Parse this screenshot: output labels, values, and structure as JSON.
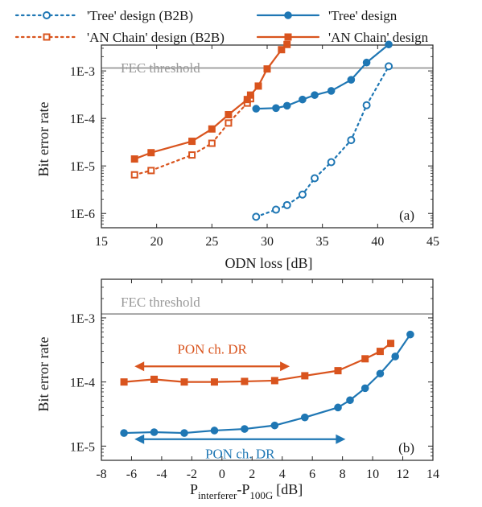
{
  "legend": {
    "items": [
      {
        "label": "'Tree' design (B2B)",
        "color": "#1f77b4",
        "marker": "open-circle",
        "line": "dotted"
      },
      {
        "label": "'Tree' design",
        "color": "#1f77b4",
        "marker": "filled-circle",
        "line": "solid"
      },
      {
        "label": "'AN Chain' design (B2B)",
        "color": "#d9541e",
        "marker": "open-square",
        "line": "dotted"
      },
      {
        "label": "'AN Chain' design",
        "color": "#d9541e",
        "marker": "filled-square",
        "line": "solid"
      }
    ]
  },
  "chart_data": [
    {
      "type": "line",
      "panel_label": "(a)",
      "xlabel": "ODN loss [dB]",
      "ylabel": "Bit error rate",
      "yscale": "log",
      "xlim": [
        15,
        45
      ],
      "ylim": [
        5e-07,
        0.0035
      ],
      "xticks": [
        15,
        20,
        25,
        30,
        35,
        40,
        45
      ],
      "yticks": [
        {
          "value": 1e-06,
          "label": "1E-6"
        },
        {
          "value": 1e-05,
          "label": "1E-5"
        },
        {
          "value": 0.0001,
          "label": "1E-4"
        },
        {
          "value": 0.001,
          "label": "1E-3"
        }
      ],
      "threshold": {
        "label": "FEC threshold",
        "value": 0.00115,
        "color": "#999999"
      },
      "series": [
        {
          "name": "'Tree' design (B2B)",
          "color": "#1f77b4",
          "marker": "open-circle",
          "line": "dotted",
          "x": [
            29.0,
            30.8,
            31.8,
            33.2,
            34.3,
            35.8,
            37.6,
            39.0,
            41.0
          ],
          "y": [
            8.5e-07,
            1.2e-06,
            1.5e-06,
            2.5e-06,
            5.5e-06,
            1.2e-05,
            3.5e-05,
            0.00019,
            0.00125
          ]
        },
        {
          "name": "'Tree' design",
          "color": "#1f77b4",
          "marker": "filled-circle",
          "line": "solid",
          "x": [
            29.0,
            30.8,
            31.8,
            33.2,
            34.3,
            35.8,
            37.6,
            39.0,
            41.0
          ],
          "y": [
            0.00016,
            0.000165,
            0.000185,
            0.00025,
            0.00031,
            0.00038,
            0.00065,
            0.0015,
            0.0036
          ]
        },
        {
          "name": "'AN Chain' design (B2B)",
          "color": "#d9541e",
          "marker": "open-square",
          "line": "dotted",
          "x": [
            18.0,
            19.5,
            23.2,
            25.0,
            26.5,
            28.2,
            28.5
          ],
          "y": [
            6.5e-06,
            8e-06,
            1.7e-05,
            3e-05,
            8e-05,
            0.00021,
            0.00026
          ]
        },
        {
          "name": "'AN Chain' design",
          "color": "#d9541e",
          "marker": "filled-square",
          "line": "solid",
          "x": [
            18.0,
            19.5,
            23.2,
            25.0,
            26.5,
            28.2,
            28.5,
            29.2,
            30.0,
            31.3,
            31.8
          ],
          "y": [
            1.4e-05,
            1.9e-05,
            3.3e-05,
            6e-05,
            0.00012,
            0.00025,
            0.00031,
            0.00048,
            0.0011,
            0.0028,
            0.0036
          ]
        }
      ]
    },
    {
      "type": "line",
      "panel_label": "(b)",
      "xlabel_main": "P",
      "xlabel_sub1": "interferer",
      "xlabel_mid": "-P",
      "xlabel_sub2": "100G",
      "xlabel_unit": "[dB]",
      "ylabel": "Bit error rate",
      "yscale": "log",
      "xlim": [
        -8,
        14
      ],
      "ylim": [
        6e-06,
        0.004
      ],
      "xticks": [
        -8,
        -6,
        -4,
        -2,
        0,
        2,
        4,
        6,
        8,
        10,
        12,
        14
      ],
      "yticks": [
        {
          "value": 1e-05,
          "label": "1E-5"
        },
        {
          "value": 0.0001,
          "label": "1E-4"
        },
        {
          "value": 0.001,
          "label": "1E-3"
        }
      ],
      "threshold": {
        "label": "FEC threshold",
        "value": 0.00115,
        "color": "#999999"
      },
      "annotations": [
        {
          "text": "PON ch. DR",
          "color": "#d9541e",
          "x_from": -5.8,
          "x_to": 4.5,
          "y": 0.000175,
          "text_y": 0.00033
        },
        {
          "text": "PON ch. DR",
          "color": "#1f77b4",
          "x_from": -5.8,
          "x_to": 8.2,
          "y": 1.28e-05,
          "text_y": 7.7e-06
        }
      ],
      "series": [
        {
          "name": "AN Chain",
          "color": "#d9541e",
          "marker": "filled-square",
          "line": "solid",
          "x": [
            -6.5,
            -4.5,
            -2.5,
            -0.5,
            1.5,
            3.5,
            5.5,
            7.7,
            9.5,
            10.5,
            11.2
          ],
          "y": [
            0.0001,
            0.00011,
            0.0001,
            0.0001,
            0.000102,
            0.000105,
            0.000125,
            0.00015,
            0.00023,
            0.0003,
            0.0004
          ]
        },
        {
          "name": "Tree",
          "color": "#1f77b4",
          "marker": "filled-circle",
          "line": "solid",
          "x": [
            -6.5,
            -4.5,
            -2.5,
            -0.5,
            1.5,
            3.5,
            5.5,
            7.7,
            8.5,
            9.5,
            10.5,
            11.5,
            12.5
          ],
          "y": [
            1.6e-05,
            1.65e-05,
            1.6e-05,
            1.75e-05,
            1.85e-05,
            2.1e-05,
            2.8e-05,
            4e-05,
            5.2e-05,
            8e-05,
            0.000135,
            0.00025,
            0.00055
          ]
        }
      ]
    }
  ]
}
